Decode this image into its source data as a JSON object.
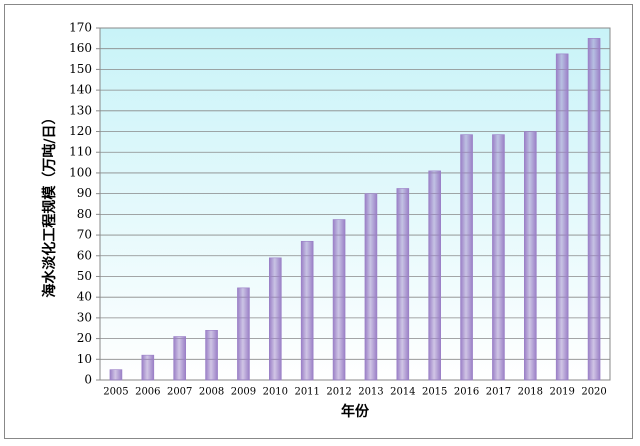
{
  "chart_data": {
    "type": "bar",
    "x_label": "年份",
    "y_label": "海水淡化工程规模（万吨/日）",
    "categories": [
      "2005",
      "2006",
      "2007",
      "2008",
      "2009",
      "2010",
      "2011",
      "2012",
      "2013",
      "2014",
      "2015",
      "2016",
      "2017",
      "2018",
      "2019",
      "2020"
    ],
    "values": [
      5,
      12,
      21,
      24,
      44.5,
      59,
      67,
      77.5,
      90,
      92.5,
      101,
      118.5,
      118.5,
      120,
      157.5,
      165
    ],
    "color": "#9a7fc6",
    "ylim": [
      0,
      170
    ],
    "yticks": [
      0,
      10,
      20,
      30,
      40,
      50,
      60,
      70,
      80,
      90,
      100,
      110,
      120,
      130,
      140,
      150,
      160,
      170
    ],
    "grid": true
  }
}
